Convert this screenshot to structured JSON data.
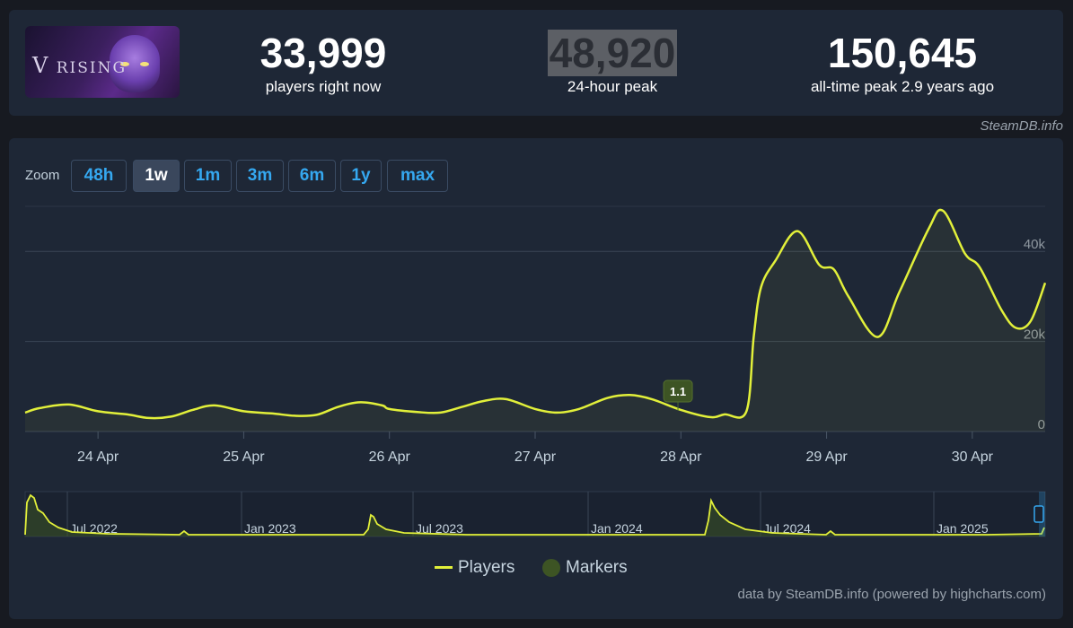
{
  "game": {
    "logo_letter": "V",
    "logo_word": "RISING"
  },
  "stats": {
    "current": {
      "value": "33,999",
      "label": "players right now"
    },
    "peak24": {
      "value": "48,920",
      "label": "24-hour peak"
    },
    "alltime": {
      "value": "150,645",
      "label": "all-time peak 2.9 years ago"
    }
  },
  "watermark": "SteamDB.info",
  "zoom": {
    "label": "Zoom",
    "buttons": [
      "48h",
      "1w",
      "1m",
      "3m",
      "6m",
      "1y",
      "max"
    ],
    "active": "1w"
  },
  "legend": {
    "players": "Players",
    "markers": "Markers"
  },
  "credits": "data by SteamDB.info (powered by highcharts.com)",
  "colors": {
    "line": "#e2f03a",
    "marker": "#3d5424",
    "accent": "#35a8f0"
  },
  "chart_data": {
    "type": "line",
    "title": "",
    "ylabel": "",
    "ylim": [
      0,
      50000
    ],
    "y_ticks": [
      "0",
      "20k",
      "40k"
    ],
    "y_tick_values": [
      0,
      20000,
      40000
    ],
    "x_ticks": [
      "24 Apr",
      "25 Apr",
      "26 Apr",
      "27 Apr",
      "28 Apr",
      "29 Apr",
      "30 Apr"
    ],
    "x_tick_values": [
      1,
      2,
      3,
      4,
      5,
      6,
      7
    ],
    "xlim": [
      0.5,
      7.5
    ],
    "grid": true,
    "series": [
      {
        "name": "Players",
        "x": [
          0.5,
          0.6,
          0.8,
          1.0,
          1.2,
          1.35,
          1.5,
          1.65,
          1.8,
          2.0,
          2.2,
          2.35,
          2.5,
          2.65,
          2.8,
          2.95,
          3.0,
          3.2,
          3.35,
          3.5,
          3.65,
          3.8,
          4.0,
          4.15,
          4.3,
          4.5,
          4.65,
          4.8,
          5.0,
          5.2,
          5.3,
          5.45,
          5.5,
          5.55,
          5.65,
          5.8,
          5.95,
          6.05,
          6.15,
          6.35,
          6.5,
          6.7,
          6.8,
          6.95,
          7.05,
          7.2,
          7.3,
          7.4,
          7.5
        ],
        "y": [
          4200,
          5200,
          6000,
          4500,
          3800,
          3000,
          3300,
          4800,
          5800,
          4500,
          4000,
          3500,
          3700,
          5500,
          6500,
          5800,
          5000,
          4300,
          4200,
          5500,
          6800,
          7200,
          5000,
          4200,
          5000,
          7500,
          8100,
          7200,
          4800,
          3200,
          3800,
          4500,
          21000,
          32000,
          38000,
          44500,
          37000,
          36000,
          30000,
          21000,
          31000,
          45000,
          49000,
          39500,
          36500,
          27000,
          23000,
          24500,
          33000
        ]
      }
    ],
    "markers": [
      {
        "x": 4.98,
        "label": "1.1"
      }
    ],
    "navigator": {
      "ticks": [
        "Jul 2022",
        "Jan 2023",
        "Jul 2023",
        "Jan 2024",
        "Jul 2024",
        "Jan 2025"
      ]
    }
  }
}
